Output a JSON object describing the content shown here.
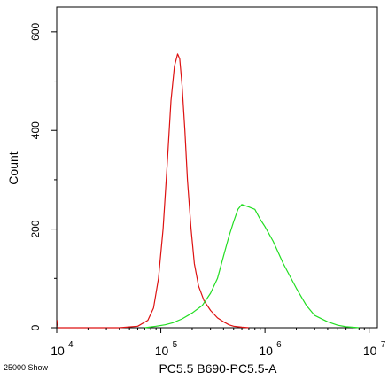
{
  "chart_data": {
    "type": "line",
    "title": "",
    "xlabel": "PC5.5 B690-PC5.5-A",
    "ylabel": "Count",
    "x_scale": "log",
    "xlim": [
      10000,
      12000000
    ],
    "ylim": [
      0,
      650
    ],
    "x_ticks": [
      {
        "value": 10000,
        "base": "10",
        "exp": "4"
      },
      {
        "value": 100000,
        "base": "10",
        "exp": "5"
      },
      {
        "value": 1000000,
        "base": "10",
        "exp": "6"
      },
      {
        "value": 10000000,
        "base": "10",
        "exp": "7"
      }
    ],
    "y_ticks": [
      {
        "value": 0,
        "label": "0"
      },
      {
        "value": 200,
        "label": "200"
      },
      {
        "value": 400,
        "label": "400"
      },
      {
        "value": 600,
        "label": "600"
      }
    ],
    "events_label": "25000 Show",
    "grid": false,
    "series": [
      {
        "color": "#dd1111",
        "x": [
          10100,
          10300,
          40000,
          60000,
          75000,
          85000,
          95000,
          105000,
          115000,
          125000,
          135000,
          145000,
          152000,
          160000,
          170000,
          180000,
          195000,
          210000,
          230000,
          260000,
          300000,
          350000,
          400000,
          450000,
          500000,
          600000,
          700000
        ],
        "y": [
          15,
          0,
          0,
          3,
          15,
          40,
          100,
          200,
          330,
          460,
          530,
          555,
          545,
          490,
          400,
          300,
          200,
          130,
          85,
          55,
          35,
          20,
          12,
          6,
          3,
          1,
          0
        ]
      },
      {
        "color": "#22dd22",
        "x": [
          70000,
          90000,
          110000,
          130000,
          160000,
          200000,
          250000,
          300000,
          350000,
          400000,
          450000,
          500000,
          550000,
          600000,
          700000,
          800000,
          900000,
          1000000,
          1200000,
          1500000,
          2000000,
          2500000,
          3000000,
          4000000,
          5000000,
          6000000,
          8000000
        ],
        "y": [
          0,
          3,
          6,
          10,
          18,
          30,
          45,
          70,
          100,
          145,
          185,
          215,
          240,
          250,
          245,
          240,
          220,
          205,
          175,
          130,
          80,
          45,
          25,
          12,
          5,
          2,
          0
        ]
      }
    ]
  }
}
